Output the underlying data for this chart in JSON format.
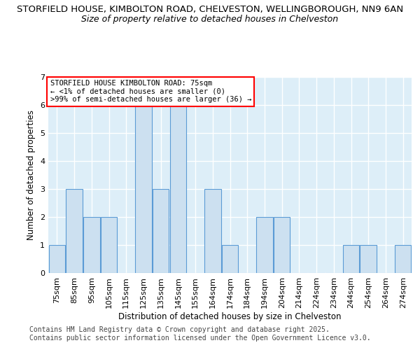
{
  "title_line1": "STORFIELD HOUSE, KIMBOLTON ROAD, CHELVESTON, WELLINGBOROUGH, NN9 6AN",
  "title_line2": "Size of property relative to detached houses in Chelveston",
  "xlabel": "Distribution of detached houses by size in Chelveston",
  "ylabel": "Number of detached properties",
  "categories": [
    "75sqm",
    "85sqm",
    "95sqm",
    "105sqm",
    "115sqm",
    "125sqm",
    "135sqm",
    "145sqm",
    "155sqm",
    "164sqm",
    "174sqm",
    "184sqm",
    "194sqm",
    "204sqm",
    "214sqm",
    "224sqm",
    "234sqm",
    "244sqm",
    "254sqm",
    "264sqm",
    "274sqm"
  ],
  "values": [
    1,
    3,
    2,
    2,
    0,
    6,
    3,
    6,
    0,
    3,
    1,
    0,
    2,
    2,
    0,
    0,
    0,
    1,
    1,
    0,
    1
  ],
  "bar_color": "#cce0f0",
  "bar_edge_color": "#5b9bd5",
  "ylim": [
    0,
    7
  ],
  "yticks": [
    0,
    1,
    2,
    3,
    4,
    5,
    6,
    7
  ],
  "annotation_title": "STORFIELD HOUSE KIMBOLTON ROAD: 75sqm",
  "annotation_line2": "← <1% of detached houses are smaller (0)",
  "annotation_line3": ">99% of semi-detached houses are larger (36) →",
  "footer_line1": "Contains HM Land Registry data © Crown copyright and database right 2025.",
  "footer_line2": "Contains public sector information licensed under the Open Government Licence v3.0.",
  "plot_bg_color": "#ddeef8",
  "grid_color": "#ffffff",
  "title_fontsize": 9.5,
  "subtitle_fontsize": 9,
  "axis_label_fontsize": 8.5,
  "tick_fontsize": 8,
  "footer_fontsize": 7,
  "ann_fontsize": 7.5
}
